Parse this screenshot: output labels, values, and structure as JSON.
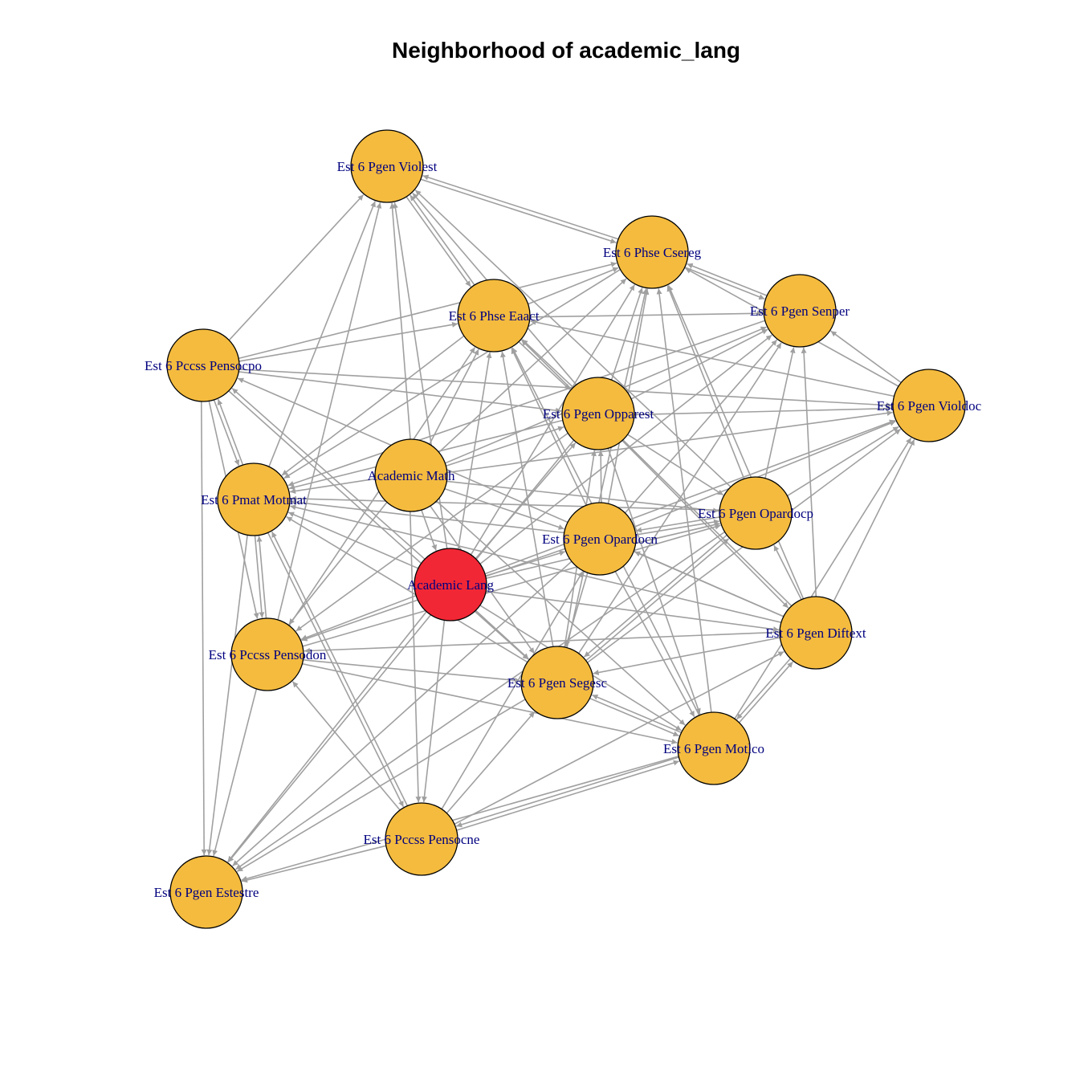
{
  "title": "Neighborhood of academic_lang",
  "colors": {
    "focus_node": "#f22735",
    "neighbor_node": "#f4bb3e",
    "edge": "#a0a0a0",
    "label": "#00007f"
  },
  "nodes": [
    {
      "id": "violest",
      "label": "Est 6 Pgen Violest",
      "focus": false
    },
    {
      "id": "csereg",
      "label": "Est 6 Phse Csereg",
      "focus": false
    },
    {
      "id": "senper",
      "label": "Est 6 Pgen Senper",
      "focus": false
    },
    {
      "id": "eaact",
      "label": "Est 6 Phse Eaact",
      "focus": false
    },
    {
      "id": "pensocpo",
      "label": "Est 6 Pccss Pensocpo",
      "focus": false
    },
    {
      "id": "violdoc",
      "label": "Est 6 Pgen Violdoc",
      "focus": false
    },
    {
      "id": "opparest",
      "label": "Est 6 Pgen Opparest",
      "focus": false
    },
    {
      "id": "acmath",
      "label": "Academic Math",
      "focus": false
    },
    {
      "id": "motmat",
      "label": "Est 6 Pmat Motmat",
      "focus": false
    },
    {
      "id": "opardocp",
      "label": "Est 6 Pgen Opardocp",
      "focus": false
    },
    {
      "id": "opardocn",
      "label": "Est 6 Pgen Opardocn",
      "focus": false
    },
    {
      "id": "aclang",
      "label": "Academic Lang",
      "focus": true
    },
    {
      "id": "diftext",
      "label": "Est 6 Pgen Diftext",
      "focus": false
    },
    {
      "id": "pensodon",
      "label": "Est 6 Pccss Pensodon",
      "focus": false
    },
    {
      "id": "segesc",
      "label": "Est 6 Pgen Segesc",
      "focus": false
    },
    {
      "id": "motlco",
      "label": "Est 6 Pgen Motlco",
      "focus": false
    },
    {
      "id": "pensocne",
      "label": "Est 6 Pccss Pensocne",
      "focus": false
    },
    {
      "id": "estestre",
      "label": "Est 6 Pgen Estestre",
      "focus": false
    }
  ],
  "edges": [
    [
      "pensocpo",
      "violest"
    ],
    [
      "motmat",
      "violest"
    ],
    [
      "pensodon",
      "violest"
    ],
    [
      "acmath",
      "violest"
    ],
    [
      "eaact",
      "violest"
    ],
    [
      "violest",
      "eaact"
    ],
    [
      "violest",
      "csereg"
    ],
    [
      "csereg",
      "violest"
    ],
    [
      "opparest",
      "violest"
    ],
    [
      "opardocp",
      "violest"
    ],
    [
      "aclang",
      "violest"
    ],
    [
      "pensocpo",
      "csereg"
    ],
    [
      "eaact",
      "csereg"
    ],
    [
      "opparest",
      "csereg"
    ],
    [
      "acmath",
      "csereg"
    ],
    [
      "opardocn",
      "csereg"
    ],
    [
      "segesc",
      "csereg"
    ],
    [
      "motlco",
      "csereg"
    ],
    [
      "diftext",
      "csereg"
    ],
    [
      "senper",
      "csereg"
    ],
    [
      "csereg",
      "senper"
    ],
    [
      "violdoc",
      "csereg"
    ],
    [
      "opardocp",
      "csereg"
    ],
    [
      "csereg",
      "motmat"
    ],
    [
      "aclang",
      "csereg"
    ],
    [
      "eaact",
      "senper"
    ],
    [
      "opparest",
      "senper"
    ],
    [
      "opardocp",
      "senper"
    ],
    [
      "diftext",
      "senper"
    ],
    [
      "violdoc",
      "senper"
    ],
    [
      "acmath",
      "senper"
    ],
    [
      "segesc",
      "senper"
    ],
    [
      "opardocn",
      "senper"
    ],
    [
      "senper",
      "motmat"
    ],
    [
      "aclang",
      "senper"
    ],
    [
      "pensocpo",
      "eaact"
    ],
    [
      "acmath",
      "eaact"
    ],
    [
      "opparest",
      "eaact"
    ],
    [
      "eaact",
      "opparest"
    ],
    [
      "opardocn",
      "eaact"
    ],
    [
      "segesc",
      "eaact"
    ],
    [
      "diftext",
      "eaact"
    ],
    [
      "motlco",
      "eaact"
    ],
    [
      "violdoc",
      "eaact"
    ],
    [
      "eaact",
      "motmat"
    ],
    [
      "aclang",
      "eaact"
    ],
    [
      "pensodon",
      "eaact"
    ],
    [
      "pensocpo",
      "motmat"
    ],
    [
      "motmat",
      "pensocpo"
    ],
    [
      "pensocpo",
      "opparest"
    ],
    [
      "pensocpo",
      "violdoc"
    ],
    [
      "pensocpo",
      "pensodon"
    ],
    [
      "pensocpo",
      "segesc"
    ],
    [
      "aclang",
      "pensocpo"
    ],
    [
      "diftext",
      "pensocpo"
    ],
    [
      "opparest",
      "violdoc"
    ],
    [
      "opardocp",
      "violdoc"
    ],
    [
      "diftext",
      "violdoc"
    ],
    [
      "opardocn",
      "violdoc"
    ],
    [
      "acmath",
      "violdoc"
    ],
    [
      "segesc",
      "violdoc"
    ],
    [
      "aclang",
      "violdoc"
    ],
    [
      "motlco",
      "violdoc"
    ],
    [
      "acmath",
      "opparest"
    ],
    [
      "opparest",
      "motmat"
    ],
    [
      "opardocn",
      "opparest"
    ],
    [
      "segesc",
      "opparest"
    ],
    [
      "opparest",
      "opardocp"
    ],
    [
      "opparest",
      "diftext"
    ],
    [
      "opparest",
      "pensodon"
    ],
    [
      "aclang",
      "opparest"
    ],
    [
      "opparest",
      "motlco"
    ],
    [
      "opparest",
      "estestre"
    ],
    [
      "acmath",
      "motmat"
    ],
    [
      "acmath",
      "opardocn"
    ],
    [
      "acmath",
      "opardocp"
    ],
    [
      "acmath",
      "aclang"
    ],
    [
      "acmath",
      "segesc"
    ],
    [
      "acmath",
      "pensodon"
    ],
    [
      "acmath",
      "pensocne"
    ],
    [
      "acmath",
      "motlco"
    ],
    [
      "opardocp",
      "motmat"
    ],
    [
      "opardocn",
      "motmat"
    ],
    [
      "aclang",
      "motmat"
    ],
    [
      "diftext",
      "motmat"
    ],
    [
      "segesc",
      "motmat"
    ],
    [
      "motmat",
      "pensodon"
    ],
    [
      "pensodon",
      "motmat"
    ],
    [
      "motmat",
      "estestre"
    ],
    [
      "pensocne",
      "motmat"
    ],
    [
      "motmat",
      "pensocne"
    ],
    [
      "opardocn",
      "opardocp"
    ],
    [
      "opardocp",
      "opardocn"
    ],
    [
      "aclang",
      "opardocp"
    ],
    [
      "diftext",
      "opardocp"
    ],
    [
      "segesc",
      "opardocp"
    ],
    [
      "pensodon",
      "opardocp"
    ],
    [
      "opardocp",
      "segesc"
    ],
    [
      "opardocp",
      "estestre"
    ],
    [
      "aclang",
      "opardocn"
    ],
    [
      "opardocn",
      "segesc"
    ],
    [
      "opardocn",
      "motlco"
    ],
    [
      "diftext",
      "opardocn"
    ],
    [
      "opardocn",
      "pensodon"
    ],
    [
      "pensocne",
      "opardocn"
    ],
    [
      "opardocn",
      "estestre"
    ],
    [
      "aclang",
      "segesc"
    ],
    [
      "aclang",
      "pensodon"
    ],
    [
      "aclang",
      "pensocne"
    ],
    [
      "aclang",
      "motlco"
    ],
    [
      "aclang",
      "estestre"
    ],
    [
      "aclang",
      "diftext"
    ],
    [
      "diftext",
      "segesc"
    ],
    [
      "diftext",
      "motlco"
    ],
    [
      "motlco",
      "diftext"
    ],
    [
      "diftext",
      "pensodon"
    ],
    [
      "pensocne",
      "diftext"
    ],
    [
      "pensodon",
      "segesc"
    ],
    [
      "pensodon",
      "motlco"
    ],
    [
      "pensodon",
      "estestre"
    ],
    [
      "pensocne",
      "pensodon"
    ],
    [
      "segesc",
      "motlco"
    ],
    [
      "motlco",
      "segesc"
    ],
    [
      "pensocne",
      "segesc"
    ],
    [
      "segesc",
      "estestre"
    ],
    [
      "pensocne",
      "motlco"
    ],
    [
      "motlco",
      "pensocne"
    ],
    [
      "pensocne",
      "estestre"
    ],
    [
      "motlco",
      "estestre"
    ],
    [
      "pensocpo",
      "estestre"
    ]
  ]
}
